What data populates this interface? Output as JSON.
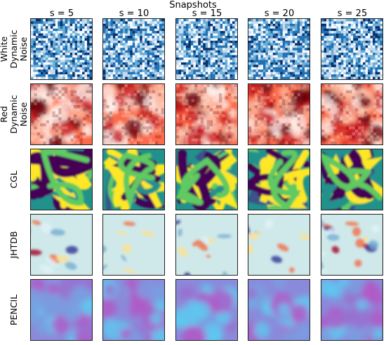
{
  "figure": {
    "super_title": "Snapshots",
    "columns": [
      "s = 5",
      "s = 10",
      "s = 15",
      "s = 20",
      "s = 25"
    ],
    "rows": [
      {
        "label_lines": [
          "White",
          "Dynamic",
          "Noise"
        ],
        "name": "white-dynamic-noise",
        "colormap": "Blues",
        "pattern": "white-noise",
        "colors": [
          "#f7fbff",
          "#c6dbef",
          "#6baed6",
          "#2171b5",
          "#08306b"
        ]
      },
      {
        "label_lines": [
          "Red",
          "Dynamic",
          "Noise"
        ],
        "name": "red-dynamic-noise",
        "colormap": "Reds",
        "pattern": "red-noise",
        "colors": [
          "#fff5f0",
          "#fcbba1",
          "#fb6a4a",
          "#cb181d",
          "#67000d"
        ]
      },
      {
        "label_lines": [
          "CGL"
        ],
        "name": "cgl",
        "colormap": "viridis",
        "pattern": "stripes",
        "colors": [
          "#440154",
          "#3b528b",
          "#21918c",
          "#5ec962",
          "#fde725"
        ]
      },
      {
        "label_lines": [
          "JHTDB"
        ],
        "name": "jhtdb",
        "colormap": "RdYlBu_r",
        "pattern": "turbulence",
        "colors": [
          "#313695",
          "#74add1",
          "#e0f3f8",
          "#fee090",
          "#f46d43",
          "#a50026"
        ]
      },
      {
        "label_lines": [
          "PENCIL"
        ],
        "name": "pencil",
        "colormap": "cool-purple",
        "pattern": "blobs",
        "colors": [
          "#5ec8f0",
          "#7a9ee0",
          "#9a6fd0",
          "#b05bc8"
        ]
      }
    ]
  }
}
